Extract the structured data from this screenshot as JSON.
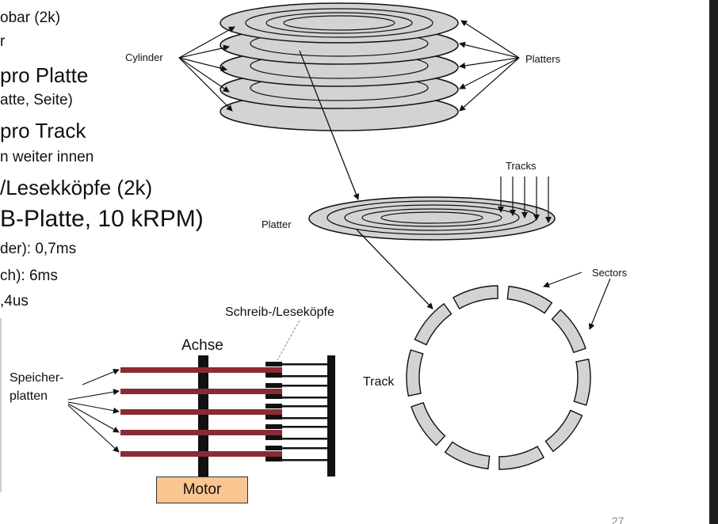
{
  "slide": {
    "bullets": [
      {
        "id": "b1",
        "text": "obar (2k)"
      },
      {
        "id": "b2",
        "text": "r"
      },
      {
        "id": "b3",
        "text": "pro Platte"
      },
      {
        "id": "b4",
        "text": "atte, Seite)"
      },
      {
        "id": "b5",
        "text": "pro Track"
      },
      {
        "id": "b6",
        "text": "n weiter innen"
      },
      {
        "id": "b7",
        "text": "/Lesekköpfe (2k)"
      },
      {
        "id": "b8",
        "text": "B-Platte, 10 kRPM)"
      },
      {
        "id": "b9",
        "text": "der): 0,7ms"
      },
      {
        "id": "b10",
        "text": "ch): 6ms"
      },
      {
        "id": "b11",
        "text": ",4us"
      }
    ],
    "page_number": "27"
  },
  "diagram_top": {
    "cylinder_label": "Cylinder",
    "platters_label": "Platters",
    "tracks_label": "Tracks",
    "platter_label": "Platter",
    "sectors_label": "Sectors",
    "track_label": "Track"
  },
  "diagram_bottom": {
    "heads_label": "Schreib-/Leseköpfe",
    "axis_label": "Achse",
    "platters_label_line1": "Speicher-",
    "platters_label_line2": "platten",
    "motor_label": "Motor"
  },
  "colors": {
    "platter_fill": "#d3d3d3",
    "disk_bar": "#8b2a36",
    "motor_fill": "#f9c590",
    "sidebar": "#1e1e1e"
  }
}
